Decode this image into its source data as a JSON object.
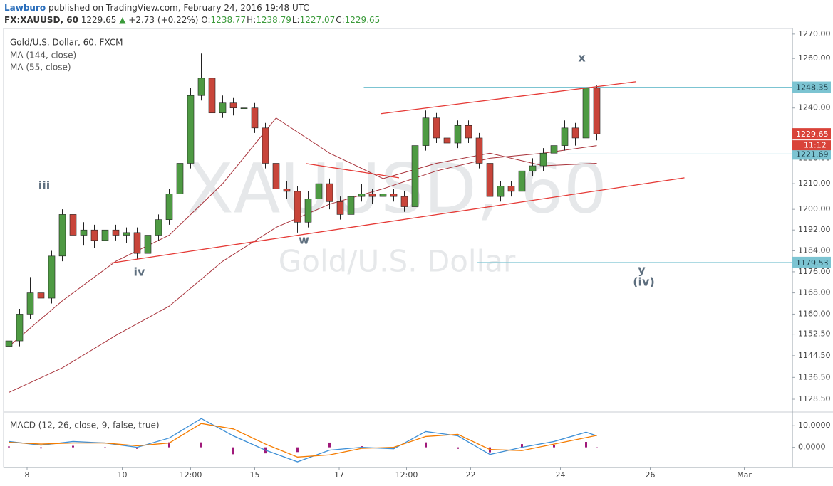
{
  "header": {
    "author": "Lawburo",
    "published": "published on TradingView.com, February 24, 2016 19:48 UTC",
    "symbol": "FX:XAUUSD, 60",
    "last": "1229.65",
    "arrow": "▲",
    "change": "+2.73 (+0.22%)",
    "ohlc": [
      [
        "O:",
        "1238.77"
      ],
      [
        "H:",
        "1238.79"
      ],
      [
        "L:",
        "1227.07"
      ],
      [
        "C:",
        "1229.65"
      ]
    ]
  },
  "chart_data": [
    {
      "type": "candlestick",
      "title": "Gold/U.S. Dollar, 60, FXCM",
      "watermark": [
        "XAUUSD, 60",
        "Gold/U.S. Dollar"
      ],
      "log_scale": true,
      "up_color": "#4e9a43",
      "down_color": "#c8453a",
      "wick_color": "#222222",
      "x": [
        0,
        1,
        2,
        3,
        4,
        5,
        6,
        7,
        8,
        9,
        10,
        11,
        12,
        13,
        14,
        15,
        16,
        17,
        18,
        19,
        20,
        21,
        22,
        23,
        24,
        25,
        26,
        27,
        28,
        29,
        30,
        31,
        32,
        33,
        34,
        35,
        36,
        37,
        38,
        39,
        40,
        41,
        42,
        43,
        44,
        45,
        46,
        47,
        48,
        49,
        50,
        51,
        52,
        53,
        54,
        55
      ],
      "open": [
        1148,
        1150,
        1160,
        1168,
        1166,
        1182,
        1198,
        1190,
        1192,
        1188,
        1192,
        1190,
        1191,
        1183,
        1190,
        1196,
        1206,
        1218,
        1245,
        1252,
        1238,
        1242,
        1240,
        1240,
        1232,
        1218,
        1208,
        1207,
        1195,
        1204,
        1210,
        1203,
        1198,
        1205,
        1206,
        1205,
        1206,
        1205,
        1201,
        1225,
        1236,
        1228,
        1226,
        1233,
        1228,
        1218,
        1205,
        1209,
        1207,
        1215,
        1217,
        1222,
        1225,
        1232,
        1228,
        1248
      ],
      "high": [
        1153,
        1162,
        1174,
        1170,
        1184,
        1200,
        1200,
        1195,
        1194,
        1197,
        1194,
        1193,
        1193,
        1192,
        1198,
        1208,
        1222,
        1248,
        1262,
        1254,
        1245,
        1244,
        1243,
        1242,
        1234,
        1220,
        1211,
        1209,
        1207,
        1213,
        1212,
        1205,
        1208,
        1210,
        1208,
        1208,
        1208,
        1207,
        1228,
        1239,
        1238,
        1230,
        1235,
        1235,
        1230,
        1220,
        1211,
        1211,
        1218,
        1220,
        1224,
        1228,
        1235,
        1234,
        1252,
        1249
      ],
      "low": [
        1144,
        1148,
        1158,
        1164,
        1164,
        1180,
        1188,
        1186,
        1185,
        1186,
        1188,
        1187,
        1181,
        1181,
        1188,
        1194,
        1204,
        1216,
        1243,
        1236,
        1236,
        1237,
        1237,
        1230,
        1216,
        1205,
        1204,
        1191,
        1193,
        1202,
        1200,
        1196,
        1196,
        1203,
        1202,
        1203,
        1203,
        1199,
        1199,
        1223,
        1226,
        1223,
        1224,
        1226,
        1216,
        1202,
        1203,
        1205,
        1205,
        1213,
        1215,
        1220,
        1223,
        1225,
        1226,
        1227.07
      ],
      "close": [
        1150,
        1160,
        1168,
        1166,
        1182,
        1198,
        1190,
        1192,
        1188,
        1192,
        1190,
        1191,
        1183,
        1190,
        1196,
        1206,
        1218,
        1245,
        1252,
        1238,
        1242,
        1240,
        1240,
        1232,
        1218,
        1208,
        1207,
        1195,
        1204,
        1210,
        1203,
        1198,
        1205,
        1206,
        1205,
        1206,
        1205,
        1201,
        1225,
        1236,
        1228,
        1226,
        1233,
        1228,
        1218,
        1205,
        1209,
        1207,
        1215,
        1217,
        1222,
        1225,
        1232,
        1228,
        1248,
        1229.65
      ],
      "series": [
        {
          "name": "MA (144, close)",
          "color": "#a8323a",
          "x": [
            0,
            5,
            10,
            15,
            20,
            25,
            30,
            35,
            40,
            45,
            50,
            55
          ],
          "values": [
            1131,
            1140,
            1152,
            1163,
            1180,
            1193,
            1202,
            1208,
            1215,
            1220,
            1222,
            1225
          ]
        },
        {
          "name": "MA (55, close)",
          "color": "#a8323a",
          "x": [
            0,
            5,
            10,
            15,
            20,
            25,
            30,
            35,
            40,
            45,
            50,
            55
          ],
          "values": [
            1148,
            1165,
            1180,
            1190,
            1210,
            1236,
            1222,
            1212,
            1218,
            1222,
            1217,
            1218
          ]
        }
      ],
      "xlim": [
        -0.5,
        73.3
      ],
      "xticks": [
        {
          "value": 1.7,
          "label": "8"
        },
        {
          "value": 10.6,
          "label": "10"
        },
        {
          "value": 17.0,
          "label": "12:00"
        },
        {
          "value": 23.0,
          "label": "15"
        },
        {
          "value": 30.9,
          "label": "17"
        },
        {
          "value": 37.2,
          "label": "12:00"
        },
        {
          "value": 43.2,
          "label": "22"
        },
        {
          "value": 51.6,
          "label": "24"
        },
        {
          "value": 60.0,
          "label": "26"
        },
        {
          "value": 68.8,
          "label": "Mar"
        }
      ],
      "ylim": [
        1124.1,
        1272.3
      ],
      "yticks": [
        {
          "value": 1270,
          "label": "1270.00"
        },
        {
          "value": 1260,
          "label": "1260.00"
        },
        {
          "value": 1240,
          "label": "1240.00"
        },
        {
          "value": 1220,
          "label": "1220.00"
        },
        {
          "value": 1210,
          "label": "1210.00"
        },
        {
          "value": 1200,
          "label": "1200.00"
        },
        {
          "value": 1192,
          "label": "1192.00"
        },
        {
          "value": 1184,
          "label": "1184.00"
        },
        {
          "value": 1176,
          "label": "1176.00"
        },
        {
          "value": 1168,
          "label": "1168.00"
        },
        {
          "value": 1160,
          "label": "1160.00"
        },
        {
          "value": 1152.5,
          "label": "1152.50"
        },
        {
          "value": 1144.5,
          "label": "1144.50"
        },
        {
          "value": 1136.5,
          "label": "1136.50"
        },
        {
          "value": 1128.5,
          "label": "1128.50"
        }
      ],
      "hlines": [
        {
          "value": 1248.35,
          "from": 33.2,
          "color": "#7cc4d2"
        },
        {
          "value": 1221.69,
          "from": 52.2,
          "color": "#7cc4d2"
        },
        {
          "value": 1179.53,
          "from": 43.8,
          "color": "#7cc4d2"
        }
      ],
      "last_color": "#d9443a",
      "countdown": "11:12",
      "trendlines": [
        {
          "x": [
            9.5,
            63.2
          ],
          "y": [
            1179.3,
            1212.3
          ],
          "color": "#e53935"
        },
        {
          "x": [
            34.8,
            58.7
          ],
          "y": [
            1237.7,
            1250.6
          ],
          "color": "#e53935"
        },
        {
          "x": [
            27.8,
            36.5
          ],
          "y": [
            1217.9,
            1212.3
          ],
          "color": "#e53935"
        }
      ],
      "annotations": [
        {
          "text": "iii",
          "x": 3.3,
          "y": 1209
        },
        {
          "text": "iv",
          "x": 12.2,
          "y": 1175.7
        },
        {
          "text": "w",
          "x": 27.6,
          "y": 1188
        },
        {
          "text": "x",
          "x": 53.6,
          "y": 1260
        },
        {
          "text": "y",
          "x": 59.2,
          "y": 1176.5
        },
        {
          "text": "(iv)",
          "x": 59.4,
          "y": 1171.9
        }
      ]
    },
    {
      "type": "macd",
      "title": "MACD (12, 26, close, 9, false, true)",
      "xlim": [
        -0.5,
        73.3
      ],
      "ylim": [
        -9,
        16
      ],
      "yticks": [
        {
          "value": 10,
          "label": "10.0000"
        },
        {
          "value": 0,
          "label": "0.0000"
        }
      ],
      "series": [
        {
          "color": "#3d8fd6",
          "x": [
            0,
            3,
            6,
            9,
            12,
            15,
            18,
            21,
            24,
            27,
            30,
            33,
            36,
            39,
            42,
            45,
            48,
            51,
            54,
            55
          ],
          "values": [
            2.7,
            1,
            2.7,
            2,
            0,
            4.3,
            13.3,
            5.3,
            -1.3,
            -6.7,
            -1.3,
            0,
            -0.7,
            7.3,
            5.3,
            -3.3,
            0,
            2.7,
            7,
            5.3
          ]
        },
        {
          "color": "#f57c00",
          "x": [
            0,
            3,
            6,
            9,
            12,
            15,
            18,
            21,
            24,
            27,
            30,
            33,
            36,
            39,
            42,
            45,
            48,
            51,
            54,
            55
          ],
          "values": [
            2.3,
            1.5,
            2,
            2,
            0.7,
            2,
            11,
            8.5,
            1.5,
            -4.5,
            -3.5,
            -0.5,
            0,
            5,
            6,
            -1,
            -1.5,
            1.5,
            4.5,
            5.5
          ]
        }
      ],
      "histogram": {
        "color": "#a0197a",
        "x": [
          0,
          3,
          6,
          9,
          12,
          15,
          18,
          21,
          24,
          27,
          30,
          33,
          36,
          39,
          42,
          45,
          48,
          51,
          54,
          55
        ],
        "values": [
          0.4,
          -0.5,
          0.7,
          0,
          -0.7,
          2.3,
          2.3,
          -3.2,
          -2.8,
          -2.2,
          2.2,
          0.5,
          -0.7,
          2.3,
          -0.7,
          -2.3,
          1.5,
          1.2,
          2.5,
          -0.2
        ]
      }
    }
  ]
}
